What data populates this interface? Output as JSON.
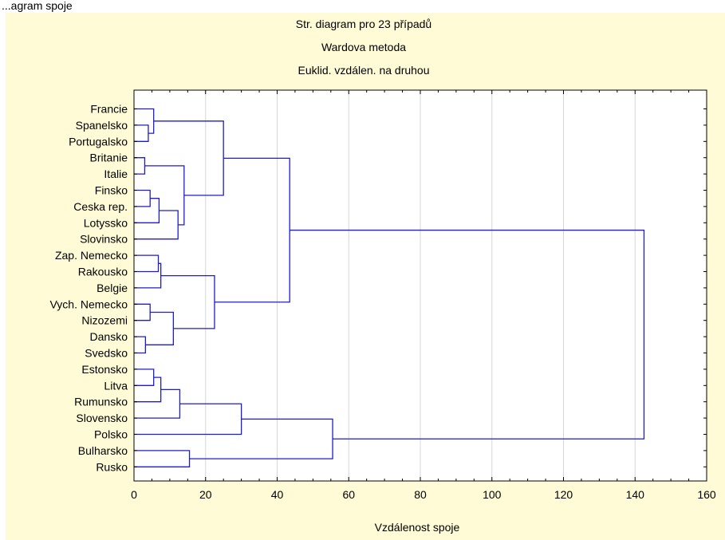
{
  "header_fragment": "...agram spoje",
  "chart_data": {
    "type": "dendrogram",
    "title_lines": [
      "Str. diagram pro 23 případů",
      "Wardova metoda",
      "Euklid. vzdálen. na druhou"
    ],
    "xlabel": "Vzdálenost spoje",
    "xlim": [
      0,
      160
    ],
    "x_ticks": [
      0,
      20,
      40,
      60,
      80,
      100,
      120,
      140,
      160
    ],
    "grid": true,
    "leaves": [
      "Francie",
      "Spanelsko",
      "Portugalsko",
      "Britanie",
      "Italie",
      "Finsko",
      "Ceska rep.",
      "Lotyssko",
      "Slovinsko",
      "Zap. Nemecko",
      "Rakousko",
      "Belgie",
      "Vych. Nemecko",
      "Nizozemi",
      "Dansko",
      "Svedsko",
      "Estonsko",
      "Litva",
      "Rumunsko",
      "Slovensko",
      "Polsko",
      "Bulharsko",
      "Rusko"
    ],
    "merges": [
      {
        "id": "m1",
        "left": "L1",
        "right": "L2",
        "height": 4.0
      },
      {
        "id": "m2",
        "left": "L0",
        "right": "m1",
        "height": 5.5
      },
      {
        "id": "m3",
        "left": "L3",
        "right": "L4",
        "height": 3.0
      },
      {
        "id": "m4",
        "left": "L5",
        "right": "L6",
        "height": 4.5
      },
      {
        "id": "m5",
        "left": "m4",
        "right": "L7",
        "height": 7.0
      },
      {
        "id": "m6",
        "left": "m5",
        "right": "L8",
        "height": 12.3
      },
      {
        "id": "m7",
        "left": "m3",
        "right": "m6",
        "height": 14.0
      },
      {
        "id": "m8",
        "left": "m2",
        "right": "m7",
        "height": 25.0
      },
      {
        "id": "m9",
        "left": "L9",
        "right": "L10",
        "height": 6.8
      },
      {
        "id": "m10",
        "left": "m9",
        "right": "L11",
        "height": 7.5
      },
      {
        "id": "m11",
        "left": "L12",
        "right": "L13",
        "height": 4.5
      },
      {
        "id": "m12",
        "left": "L14",
        "right": "L15",
        "height": 3.2
      },
      {
        "id": "m13",
        "left": "m11",
        "right": "m12",
        "height": 11.0
      },
      {
        "id": "m14",
        "left": "m10",
        "right": "m13",
        "height": 22.5
      },
      {
        "id": "m15",
        "left": "m8",
        "right": "m14",
        "height": 43.5
      },
      {
        "id": "m16",
        "left": "L16",
        "right": "L17",
        "height": 5.5
      },
      {
        "id": "m17",
        "left": "m16",
        "right": "L18",
        "height": 7.5
      },
      {
        "id": "m18",
        "left": "m17",
        "right": "L19",
        "height": 12.8
      },
      {
        "id": "m19",
        "left": "m18",
        "right": "L20",
        "height": 30.0
      },
      {
        "id": "m20",
        "left": "L21",
        "right": "L22",
        "height": 15.5
      },
      {
        "id": "m21",
        "left": "m19",
        "right": "m20",
        "height": 55.5
      },
      {
        "id": "m22",
        "left": "m15",
        "right": "m21",
        "height": 142.5
      }
    ],
    "colors": {
      "background": "#fffbd6",
      "plot_area": "#ffffff",
      "link": "#1d1dcf",
      "grid": "#d6d6d6",
      "axis": "#000000"
    }
  }
}
